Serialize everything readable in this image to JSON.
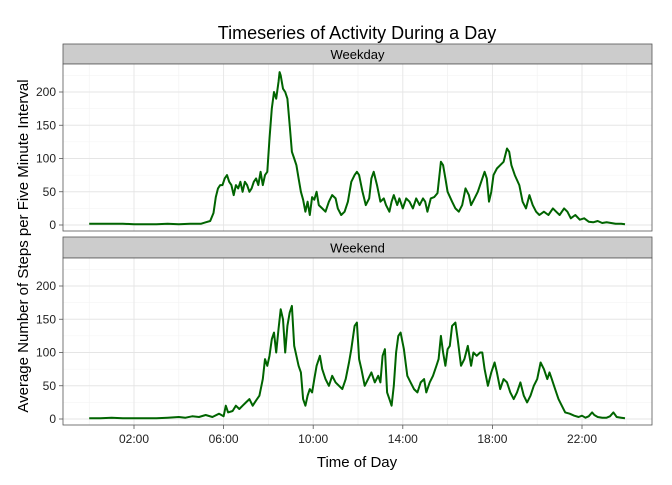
{
  "chart_data": {
    "type": "line",
    "title": "Timeseries of Activity During a Day",
    "xlabel": "Time of Day",
    "ylabel": "Average Number of Steps per Five Minute Interval",
    "x_unit": "hours",
    "xlim": [
      0,
      24
    ],
    "ylim": [
      0,
      240
    ],
    "y_ticks": [
      0,
      50,
      100,
      150,
      200
    ],
    "x_ticks": [
      {
        "value": 2,
        "label": "02:00"
      },
      {
        "value": 6,
        "label": "06:00"
      },
      {
        "value": 10,
        "label": "10:00"
      },
      {
        "value": 14,
        "label": "14:00"
      },
      {
        "value": 18,
        "label": "18:00"
      },
      {
        "value": 22,
        "label": "22:00"
      }
    ],
    "grid": true,
    "line_color": "#006400",
    "panels": [
      {
        "label": "Weekday",
        "points": [
          [
            0.0,
            2
          ],
          [
            0.5,
            2
          ],
          [
            1.0,
            2
          ],
          [
            1.5,
            2
          ],
          [
            2.0,
            1
          ],
          [
            2.5,
            1
          ],
          [
            3.0,
            1
          ],
          [
            3.5,
            2
          ],
          [
            4.0,
            1
          ],
          [
            4.5,
            2
          ],
          [
            5.0,
            2
          ],
          [
            5.2,
            4
          ],
          [
            5.4,
            6
          ],
          [
            5.55,
            18
          ],
          [
            5.65,
            42
          ],
          [
            5.75,
            55
          ],
          [
            5.85,
            60
          ],
          [
            5.95,
            60
          ],
          [
            6.05,
            70
          ],
          [
            6.15,
            75
          ],
          [
            6.25,
            65
          ],
          [
            6.35,
            60
          ],
          [
            6.45,
            45
          ],
          [
            6.55,
            60
          ],
          [
            6.65,
            55
          ],
          [
            6.75,
            65
          ],
          [
            6.85,
            50
          ],
          [
            6.95,
            65
          ],
          [
            7.05,
            60
          ],
          [
            7.15,
            50
          ],
          [
            7.25,
            55
          ],
          [
            7.35,
            65
          ],
          [
            7.45,
            70
          ],
          [
            7.55,
            60
          ],
          [
            7.65,
            80
          ],
          [
            7.75,
            60
          ],
          [
            7.85,
            75
          ],
          [
            7.95,
            80
          ],
          [
            8.05,
            130
          ],
          [
            8.15,
            175
          ],
          [
            8.25,
            200
          ],
          [
            8.35,
            190
          ],
          [
            8.45,
            215
          ],
          [
            8.5,
            230
          ],
          [
            8.55,
            225
          ],
          [
            8.65,
            205
          ],
          [
            8.75,
            200
          ],
          [
            8.85,
            190
          ],
          [
            8.95,
            150
          ],
          [
            9.05,
            110
          ],
          [
            9.15,
            100
          ],
          [
            9.25,
            90
          ],
          [
            9.35,
            70
          ],
          [
            9.45,
            50
          ],
          [
            9.55,
            38
          ],
          [
            9.65,
            20
          ],
          [
            9.75,
            35
          ],
          [
            9.85,
            15
          ],
          [
            9.95,
            42
          ],
          [
            10.05,
            38
          ],
          [
            10.15,
            50
          ],
          [
            10.25,
            30
          ],
          [
            10.4,
            25
          ],
          [
            10.55,
            20
          ],
          [
            10.7,
            35
          ],
          [
            10.85,
            45
          ],
          [
            11.0,
            40
          ],
          [
            11.1,
            25
          ],
          [
            11.25,
            15
          ],
          [
            11.4,
            20
          ],
          [
            11.55,
            35
          ],
          [
            11.7,
            65
          ],
          [
            11.85,
            75
          ],
          [
            11.95,
            80
          ],
          [
            12.05,
            75
          ],
          [
            12.2,
            50
          ],
          [
            12.35,
            30
          ],
          [
            12.5,
            40
          ],
          [
            12.6,
            70
          ],
          [
            12.7,
            80
          ],
          [
            12.85,
            60
          ],
          [
            13.0,
            35
          ],
          [
            13.15,
            40
          ],
          [
            13.25,
            30
          ],
          [
            13.4,
            20
          ],
          [
            13.5,
            35
          ],
          [
            13.6,
            45
          ],
          [
            13.75,
            30
          ],
          [
            13.85,
            40
          ],
          [
            14.0,
            25
          ],
          [
            14.15,
            40
          ],
          [
            14.3,
            35
          ],
          [
            14.45,
            25
          ],
          [
            14.6,
            40
          ],
          [
            14.75,
            30
          ],
          [
            14.9,
            40
          ],
          [
            15.0,
            35
          ],
          [
            15.1,
            20
          ],
          [
            15.25,
            40
          ],
          [
            15.4,
            42
          ],
          [
            15.55,
            48
          ],
          [
            15.7,
            95
          ],
          [
            15.8,
            90
          ],
          [
            15.9,
            70
          ],
          [
            16.0,
            50
          ],
          [
            16.2,
            35
          ],
          [
            16.35,
            25
          ],
          [
            16.5,
            20
          ],
          [
            16.65,
            30
          ],
          [
            16.8,
            55
          ],
          [
            16.95,
            45
          ],
          [
            17.05,
            30
          ],
          [
            17.2,
            40
          ],
          [
            17.35,
            50
          ],
          [
            17.5,
            65
          ],
          [
            17.65,
            80
          ],
          [
            17.75,
            70
          ],
          [
            17.85,
            35
          ],
          [
            17.95,
            50
          ],
          [
            18.05,
            75
          ],
          [
            18.2,
            85
          ],
          [
            18.35,
            90
          ],
          [
            18.5,
            95
          ],
          [
            18.65,
            115
          ],
          [
            18.75,
            110
          ],
          [
            18.85,
            90
          ],
          [
            19.0,
            75
          ],
          [
            19.2,
            60
          ],
          [
            19.35,
            35
          ],
          [
            19.5,
            25
          ],
          [
            19.65,
            45
          ],
          [
            19.8,
            30
          ],
          [
            19.95,
            20
          ],
          [
            20.1,
            15
          ],
          [
            20.3,
            20
          ],
          [
            20.5,
            15
          ],
          [
            20.7,
            25
          ],
          [
            20.85,
            20
          ],
          [
            21.0,
            15
          ],
          [
            21.2,
            25
          ],
          [
            21.35,
            20
          ],
          [
            21.5,
            10
          ],
          [
            21.7,
            15
          ],
          [
            21.9,
            8
          ],
          [
            22.1,
            10
          ],
          [
            22.3,
            5
          ],
          [
            22.5,
            4
          ],
          [
            22.7,
            6
          ],
          [
            22.9,
            3
          ],
          [
            23.1,
            4
          ],
          [
            23.3,
            3
          ],
          [
            23.5,
            2
          ],
          [
            23.75,
            2
          ],
          [
            23.92,
            1
          ]
        ]
      },
      {
        "label": "Weekend",
        "points": [
          [
            0.0,
            1
          ],
          [
            0.5,
            1
          ],
          [
            1.0,
            2
          ],
          [
            1.5,
            1
          ],
          [
            2.0,
            1
          ],
          [
            2.5,
            1
          ],
          [
            3.0,
            1
          ],
          [
            3.5,
            2
          ],
          [
            4.0,
            3
          ],
          [
            4.3,
            2
          ],
          [
            4.6,
            4
          ],
          [
            4.9,
            3
          ],
          [
            5.2,
            6
          ],
          [
            5.5,
            3
          ],
          [
            5.8,
            8
          ],
          [
            6.0,
            4
          ],
          [
            6.1,
            20
          ],
          [
            6.2,
            10
          ],
          [
            6.4,
            12
          ],
          [
            6.55,
            20
          ],
          [
            6.7,
            15
          ],
          [
            6.85,
            20
          ],
          [
            7.0,
            25
          ],
          [
            7.15,
            30
          ],
          [
            7.3,
            20
          ],
          [
            7.45,
            28
          ],
          [
            7.6,
            35
          ],
          [
            7.75,
            60
          ],
          [
            7.85,
            90
          ],
          [
            7.95,
            80
          ],
          [
            8.05,
            95
          ],
          [
            8.15,
            120
          ],
          [
            8.25,
            130
          ],
          [
            8.35,
            100
          ],
          [
            8.45,
            135
          ],
          [
            8.55,
            165
          ],
          [
            8.65,
            150
          ],
          [
            8.75,
            100
          ],
          [
            8.85,
            140
          ],
          [
            8.95,
            160
          ],
          [
            9.05,
            170
          ],
          [
            9.15,
            110
          ],
          [
            9.25,
            95
          ],
          [
            9.35,
            80
          ],
          [
            9.45,
            70
          ],
          [
            9.55,
            30
          ],
          [
            9.65,
            20
          ],
          [
            9.75,
            35
          ],
          [
            9.85,
            45
          ],
          [
            9.95,
            40
          ],
          [
            10.05,
            60
          ],
          [
            10.15,
            80
          ],
          [
            10.3,
            95
          ],
          [
            10.4,
            75
          ],
          [
            10.55,
            60
          ],
          [
            10.7,
            50
          ],
          [
            10.85,
            65
          ],
          [
            11.0,
            55
          ],
          [
            11.15,
            50
          ],
          [
            11.3,
            45
          ],
          [
            11.45,
            60
          ],
          [
            11.6,
            85
          ],
          [
            11.7,
            105
          ],
          [
            11.85,
            140
          ],
          [
            11.95,
            145
          ],
          [
            12.05,
            90
          ],
          [
            12.15,
            75
          ],
          [
            12.3,
            50
          ],
          [
            12.45,
            60
          ],
          [
            12.6,
            70
          ],
          [
            12.75,
            55
          ],
          [
            12.9,
            65
          ],
          [
            13.0,
            55
          ],
          [
            13.1,
            95
          ],
          [
            13.2,
            105
          ],
          [
            13.3,
            40
          ],
          [
            13.4,
            30
          ],
          [
            13.5,
            20
          ],
          [
            13.6,
            50
          ],
          [
            13.7,
            100
          ],
          [
            13.8,
            125
          ],
          [
            13.9,
            130
          ],
          [
            14.05,
            105
          ],
          [
            14.2,
            65
          ],
          [
            14.35,
            55
          ],
          [
            14.5,
            45
          ],
          [
            14.65,
            40
          ],
          [
            14.8,
            55
          ],
          [
            14.95,
            60
          ],
          [
            15.05,
            40
          ],
          [
            15.2,
            55
          ],
          [
            15.35,
            65
          ],
          [
            15.5,
            80
          ],
          [
            15.6,
            90
          ],
          [
            15.7,
            125
          ],
          [
            15.8,
            100
          ],
          [
            15.9,
            80
          ],
          [
            16.0,
            105
          ],
          [
            16.1,
            110
          ],
          [
            16.2,
            140
          ],
          [
            16.35,
            145
          ],
          [
            16.45,
            120
          ],
          [
            16.6,
            80
          ],
          [
            16.75,
            90
          ],
          [
            16.9,
            110
          ],
          [
            17.05,
            80
          ],
          [
            17.15,
            100
          ],
          [
            17.3,
            95
          ],
          [
            17.45,
            100
          ],
          [
            17.55,
            100
          ],
          [
            17.65,
            75
          ],
          [
            17.8,
            50
          ],
          [
            17.95,
            70
          ],
          [
            18.1,
            85
          ],
          [
            18.2,
            70
          ],
          [
            18.35,
            45
          ],
          [
            18.5,
            60
          ],
          [
            18.65,
            55
          ],
          [
            18.8,
            40
          ],
          [
            18.95,
            30
          ],
          [
            19.1,
            40
          ],
          [
            19.25,
            55
          ],
          [
            19.4,
            35
          ],
          [
            19.55,
            25
          ],
          [
            19.7,
            35
          ],
          [
            19.85,
            50
          ],
          [
            20.0,
            60
          ],
          [
            20.15,
            85
          ],
          [
            20.3,
            75
          ],
          [
            20.45,
            60
          ],
          [
            20.55,
            70
          ],
          [
            20.65,
            60
          ],
          [
            20.8,
            45
          ],
          [
            20.95,
            30
          ],
          [
            21.1,
            20
          ],
          [
            21.25,
            10
          ],
          [
            21.45,
            8
          ],
          [
            21.65,
            5
          ],
          [
            21.85,
            3
          ],
          [
            22.0,
            5
          ],
          [
            22.15,
            2
          ],
          [
            22.3,
            4
          ],
          [
            22.45,
            10
          ],
          [
            22.55,
            6
          ],
          [
            22.7,
            3
          ],
          [
            22.9,
            2
          ],
          [
            23.1,
            2
          ],
          [
            23.25,
            4
          ],
          [
            23.4,
            10
          ],
          [
            23.55,
            3
          ],
          [
            23.75,
            2
          ],
          [
            23.92,
            1
          ]
        ]
      }
    ]
  }
}
